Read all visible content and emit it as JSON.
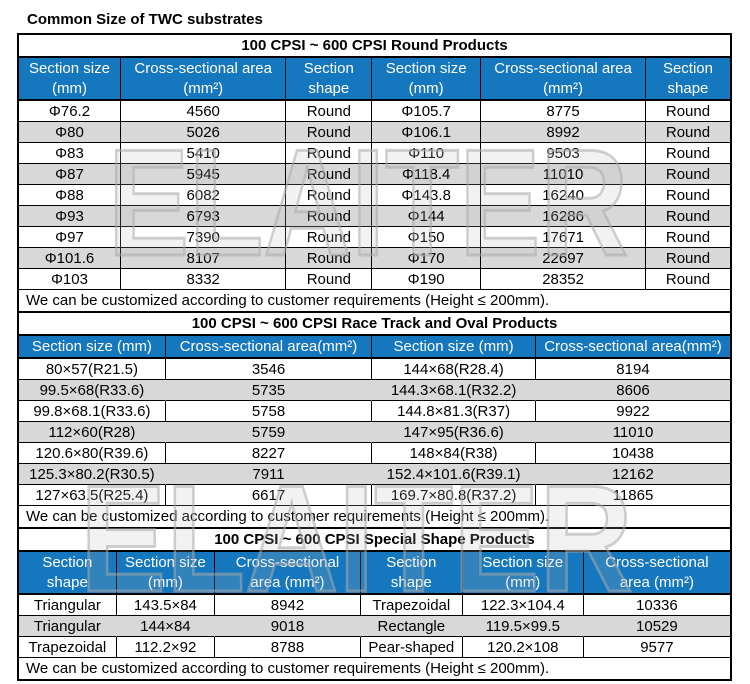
{
  "page_title": "Common Size of TWC substrates",
  "watermark_text": "ELAITER",
  "colors": {
    "header_blue": "#1577BE",
    "stripe_gray": "#D8D8D8",
    "border_black": "#000000",
    "header_text": "#FFFFFF"
  },
  "sections": [
    {
      "title": "100 CPSI ~ 600 CPSI Round Products",
      "columns": [
        "Section size\n(mm)",
        "Cross-sectional area\n(mm²)",
        "Section\nshape",
        "Section size\n(mm)",
        "Cross-sectional area\n(mm²)",
        "Section\nshape"
      ],
      "rows": [
        [
          "Φ76.2",
          "4560",
          "Round",
          "Φ105.7",
          "8775",
          "Round"
        ],
        [
          "Φ80",
          "5026",
          "Round",
          "Φ106.1",
          "8992",
          "Round"
        ],
        [
          "Φ83",
          "5410",
          "Round",
          "Φ110",
          "9503",
          "Round"
        ],
        [
          "Φ87",
          "5945",
          "Round",
          "Φ118.4",
          "11010",
          "Round"
        ],
        [
          "Φ88",
          "6082",
          "Round",
          "Φ143.8",
          "16240",
          "Round"
        ],
        [
          "Φ93",
          "6793",
          "Round",
          "Φ144",
          "16286",
          "Round"
        ],
        [
          "Φ97",
          "7390",
          "Round",
          "Φ150",
          "17671",
          "Round"
        ],
        [
          "Φ101.6",
          "8107",
          "Round",
          "Φ170",
          "22697",
          "Round"
        ],
        [
          "Φ103",
          "8332",
          "Round",
          "Φ190",
          "28352",
          "Round"
        ]
      ],
      "note": "We can be customized according to customer requirements (Height ≤ 200mm)."
    },
    {
      "title": "100 CPSI ~ 600 CPSI Race Track and Oval Products",
      "columns": [
        "Section size (mm)",
        "Cross-sectional area(mm²)",
        "Section size (mm)",
        "Cross-sectional area(mm²)"
      ],
      "rows": [
        [
          "80×57(R21.5)",
          "3546",
          "144×68(R28.4)",
          "8194"
        ],
        [
          "99.5×68(R33.6)",
          "5735",
          "144.3×68.1(R32.2)",
          "8606"
        ],
        [
          "99.8×68.1(R33.6)",
          "5758",
          "144.8×81.3(R37)",
          "9922"
        ],
        [
          "112×60(R28)",
          "5759",
          "147×95(R36.6)",
          "11010"
        ],
        [
          "120.6×80(R39.6)",
          "8227",
          "148×84(R38)",
          "10438"
        ],
        [
          "125.3×80.2(R30.5)",
          "7911",
          "152.4×101.6(R39.1)",
          "12162"
        ],
        [
          "127×63.5(R25.4)",
          "6617",
          "169.7×80.8(R37.2)",
          "11865"
        ]
      ],
      "note": "We can be customized according to customer requirements (Height ≤ 200mm)."
    },
    {
      "title": "100 CPSI ~ 600 CPSI Special Shape Products",
      "columns": [
        "Section\nshape",
        "Section size\n(mm)",
        "Cross-sectional\narea (mm²)",
        "Section\nshape",
        "Section size\n(mm)",
        "Cross-sectional\narea (mm²)"
      ],
      "rows": [
        [
          "Triangular",
          "143.5×84",
          "8942",
          "Trapezoidal",
          "122.3×104.4",
          "10336"
        ],
        [
          "Triangular",
          "144×84",
          "9018",
          "Rectangle",
          "119.5×99.5",
          "10529"
        ],
        [
          "Trapezoidal",
          "112.2×92",
          "8788",
          "Pear-shaped",
          "120.2×108",
          "9577"
        ]
      ],
      "note": "We can be customized according to customer requirements (Height ≤ 200mm)."
    }
  ]
}
